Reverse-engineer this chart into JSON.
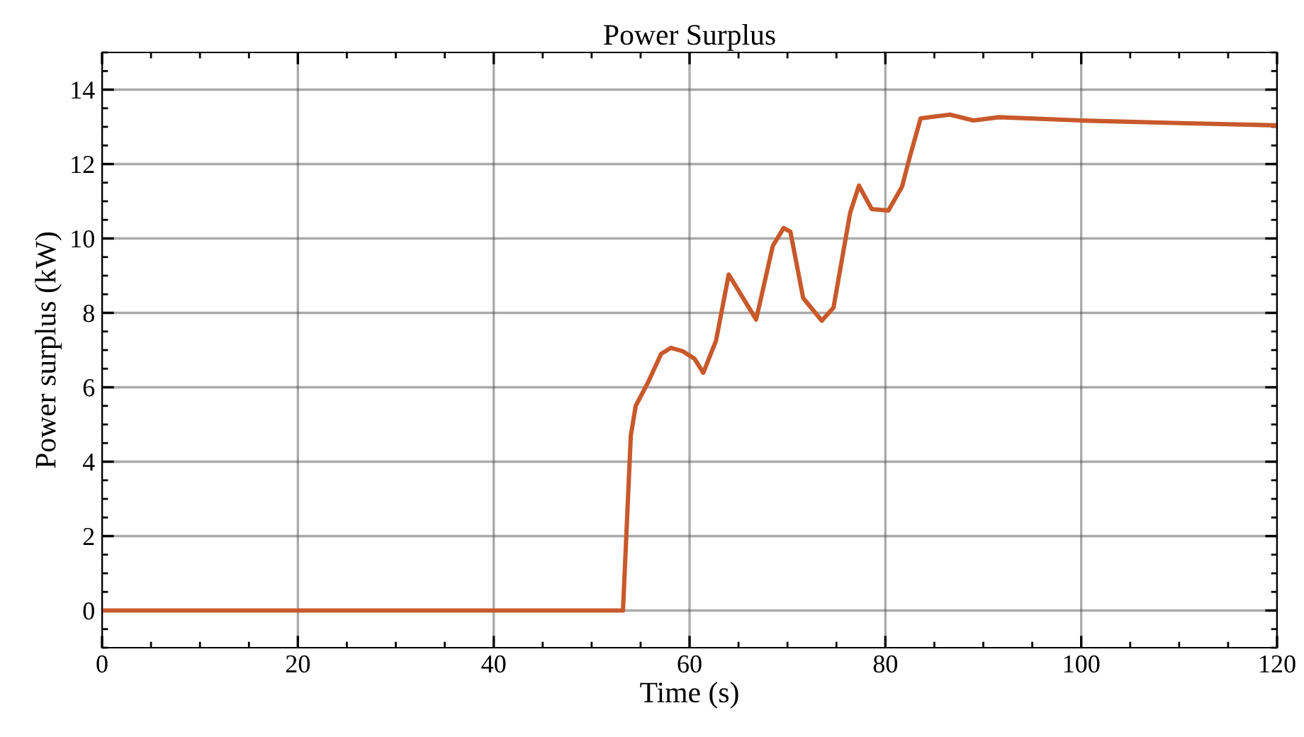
{
  "chart_data": {
    "type": "line",
    "title": "Power Surplus",
    "xlabel": "Time (s)",
    "ylabel": "Power surplus (kW)",
    "xlim": [
      0,
      120
    ],
    "ylim": [
      -1,
      15
    ],
    "xticks": [
      0,
      20,
      40,
      60,
      80,
      100,
      120
    ],
    "yticks": [
      0,
      2,
      4,
      6,
      8,
      10,
      12,
      14
    ],
    "grid": true,
    "marker": "none",
    "line_style": "solid",
    "series": [
      {
        "color": "#c8592b",
        "x": [
          0,
          53.2,
          54.0,
          54.5,
          55.7,
          57.1,
          58.1,
          59.3,
          60.5,
          61.4,
          62.7,
          64.0,
          66.8,
          68.5,
          69.6,
          70.3,
          71.6,
          73.5,
          74.7,
          76.4,
          77.3,
          78.6,
          80.3,
          81.7,
          82.5,
          83.6,
          86.6,
          89.0,
          91.6,
          100.1,
          110.2,
          120
        ],
        "values": [
          0,
          0,
          4.7,
          5.5,
          6.1,
          6.9,
          7.06,
          6.97,
          6.77,
          6.39,
          7.25,
          9.03,
          7.82,
          9.8,
          10.28,
          10.18,
          8.4,
          7.79,
          8.14,
          10.69,
          11.42,
          10.79,
          10.75,
          11.39,
          12.2,
          13.23,
          13.33,
          13.17,
          13.26,
          13.17,
          13.1,
          13.04
        ]
      }
    ]
  }
}
